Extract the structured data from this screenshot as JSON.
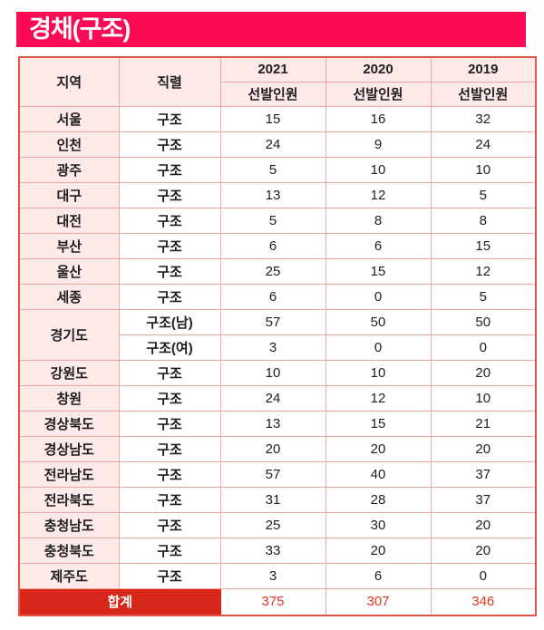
{
  "title": "경채(구조)",
  "colors": {
    "banner": "#fb0b53",
    "banner_text": "#ffffff",
    "header_bg": "#fde9e7",
    "region_bg": "#fde9e7",
    "border_light": "#f1a79f",
    "border_strong": "#e25549",
    "total_bg": "#d7271a",
    "total_label_text": "#ffffff",
    "total_value_text": "#e43425",
    "body_text": "#1e1e1e"
  },
  "table": {
    "col_region": "지역",
    "col_series": "직렬",
    "years": [
      {
        "year": "2021",
        "sub": "선발인원"
      },
      {
        "year": "2020",
        "sub": "선발인원"
      },
      {
        "year": "2019",
        "sub": "선발인원"
      }
    ],
    "rows": [
      {
        "region": "서울",
        "region_rowspan": 1,
        "series": "구조",
        "values": [
          "15",
          "16",
          "32"
        ]
      },
      {
        "region": "인천",
        "region_rowspan": 1,
        "series": "구조",
        "values": [
          "24",
          "9",
          "24"
        ]
      },
      {
        "region": "광주",
        "region_rowspan": 1,
        "series": "구조",
        "values": [
          "5",
          "10",
          "10"
        ]
      },
      {
        "region": "대구",
        "region_rowspan": 1,
        "series": "구조",
        "values": [
          "13",
          "12",
          "5"
        ]
      },
      {
        "region": "대전",
        "region_rowspan": 1,
        "series": "구조",
        "values": [
          "5",
          "8",
          "8"
        ]
      },
      {
        "region": "부산",
        "region_rowspan": 1,
        "series": "구조",
        "values": [
          "6",
          "6",
          "15"
        ]
      },
      {
        "region": "울산",
        "region_rowspan": 1,
        "series": "구조",
        "values": [
          "25",
          "15",
          "12"
        ]
      },
      {
        "region": "세종",
        "region_rowspan": 1,
        "series": "구조",
        "values": [
          "6",
          "0",
          "5"
        ]
      },
      {
        "region": "경기도",
        "region_rowspan": 2,
        "series": "구조(남)",
        "values": [
          "57",
          "50",
          "50"
        ]
      },
      {
        "region": null,
        "region_rowspan": 0,
        "series": "구조(여)",
        "values": [
          "3",
          "0",
          "0"
        ]
      },
      {
        "region": "강원도",
        "region_rowspan": 1,
        "series": "구조",
        "values": [
          "10",
          "10",
          "20"
        ]
      },
      {
        "region": "창원",
        "region_rowspan": 1,
        "series": "구조",
        "values": [
          "24",
          "12",
          "10"
        ]
      },
      {
        "region": "경상북도",
        "region_rowspan": 1,
        "series": "구조",
        "values": [
          "13",
          "15",
          "21"
        ]
      },
      {
        "region": "경상남도",
        "region_rowspan": 1,
        "series": "구조",
        "values": [
          "20",
          "20",
          "20"
        ]
      },
      {
        "region": "전라남도",
        "region_rowspan": 1,
        "series": "구조",
        "values": [
          "57",
          "40",
          "37"
        ]
      },
      {
        "region": "전라북도",
        "region_rowspan": 1,
        "series": "구조",
        "values": [
          "31",
          "28",
          "37"
        ]
      },
      {
        "region": "충청남도",
        "region_rowspan": 1,
        "series": "구조",
        "values": [
          "25",
          "30",
          "20"
        ]
      },
      {
        "region": "충청북도",
        "region_rowspan": 1,
        "series": "구조",
        "values": [
          "33",
          "20",
          "20"
        ]
      },
      {
        "region": "제주도",
        "region_rowspan": 1,
        "series": "구조",
        "values": [
          "3",
          "6",
          "0"
        ]
      }
    ],
    "total": {
      "label": "합계",
      "values": [
        "375",
        "307",
        "346"
      ]
    }
  }
}
